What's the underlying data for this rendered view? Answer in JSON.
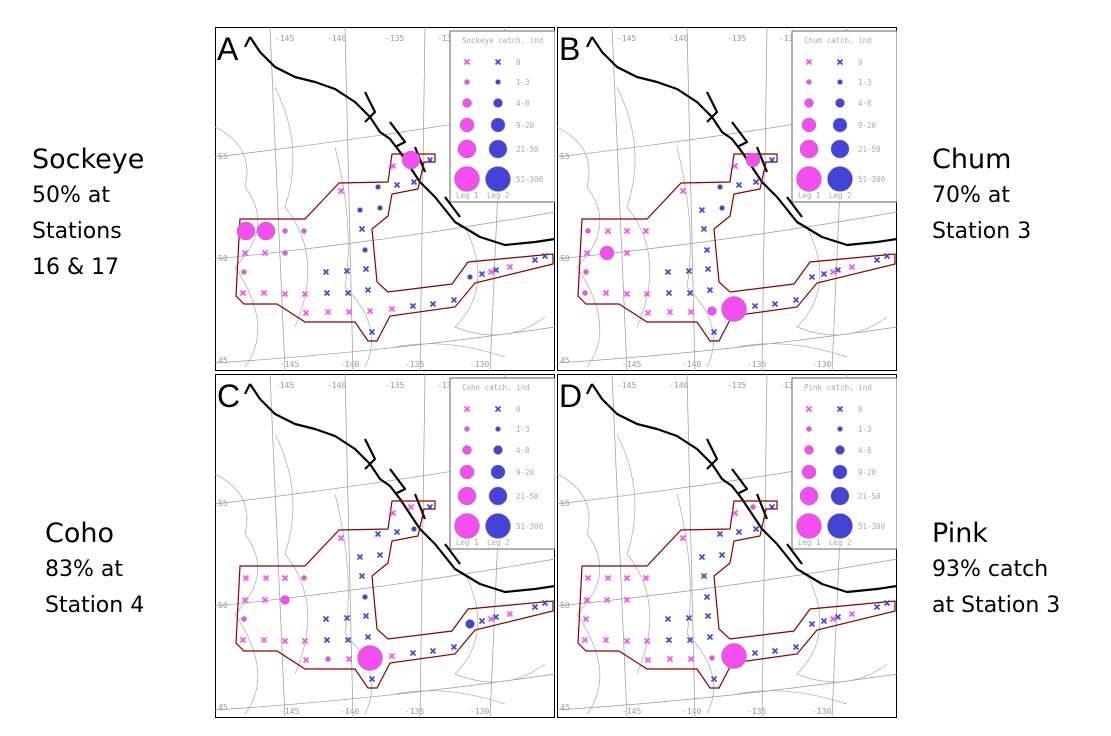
{
  "colors": {
    "leg1": "#f54ef0",
    "leg2": "#4343d8",
    "outline": "#8b0000",
    "coast": "#000000",
    "contour": "#aaaaaa"
  },
  "legend": {
    "categories": [
      "0",
      "1-3",
      "4-8",
      "9-20",
      "21-50",
      "51-300"
    ],
    "leg1": "Leg 1",
    "leg2": "Leg 2"
  },
  "lon_labels": [
    "-145",
    "-140",
    "-135",
    "-130"
  ],
  "lat_labels": [
    "55",
    "50",
    "45"
  ],
  "panels": [
    {
      "letter": "A",
      "legend_title": "Sockeye catch, ind",
      "side": {
        "title": "Sockeye",
        "lines": [
          "50% at",
          "Stations",
          "16 & 17"
        ]
      },
      "markers": [
        "m0",
        "m4",
        "b0",
        "m0",
        "b1",
        "b0",
        "b0",
        "b1",
        "b1",
        "b0",
        "b1",
        "m4",
        "m4",
        "m1",
        "m1",
        "m0",
        "m0",
        "m1",
        "m1",
        "b0",
        "b0",
        "b0",
        "m0",
        "m0",
        "m0",
        "m0",
        "b0",
        "b0",
        "b0",
        "m0",
        "m0",
        "m0",
        "m0",
        "m0",
        "b0",
        "b0",
        "b0",
        "b0",
        "b1",
        "b0",
        "m0",
        "b0",
        "m0",
        "b0",
        "b0"
      ]
    },
    {
      "letter": "B",
      "legend_title": "Chum catch, ind",
      "side": {
        "title": "Chum",
        "lines": [
          "70% at",
          "Station 3"
        ]
      },
      "markers": [
        "m0",
        "m3",
        "b0",
        "m0",
        "b1",
        "b0",
        "b0",
        "b0",
        "b1",
        "b0",
        "b0",
        "m1",
        "m0",
        "m0",
        "m0",
        "m0",
        "m3",
        "m0",
        "m1",
        "b0",
        "b0",
        "b0",
        "m1",
        "m0",
        "m0",
        "m0",
        "b0",
        "b0",
        "b0",
        "m0",
        "m0",
        "m0",
        "m2",
        "m5",
        "b0",
        "b0",
        "b0",
        "b0",
        "b0",
        "b0",
        "m0",
        "b0",
        "m0",
        "b0",
        "b0"
      ]
    },
    {
      "letter": "C",
      "legend_title": "Coho catch, ind",
      "side": {
        "title": "Coho",
        "lines": [
          "83% at",
          "Station 4"
        ]
      },
      "markers": [
        "m0",
        "m0",
        "b0",
        "m0",
        "b0",
        "b0",
        "b1",
        "b0",
        "b0",
        "b0",
        "b1",
        "m0",
        "m0",
        "m0",
        "m1",
        "m0",
        "m0",
        "m2",
        "m1",
        "b0",
        "b0",
        "b0",
        "m0",
        "m0",
        "m0",
        "m0",
        "b0",
        "b0",
        "b0",
        "m0",
        "m1",
        "m0",
        "m5",
        "m0",
        "b0",
        "b0",
        "b0",
        "b0",
        "b2",
        "b0",
        "m0",
        "b0",
        "m0",
        "b0",
        "b0"
      ]
    },
    {
      "letter": "D",
      "legend_title": "Pink catch, ind",
      "side": {
        "title": "Pink",
        "lines": [
          "93% catch",
          "at Station 3"
        ]
      },
      "markers": [
        "m0",
        "m1",
        "b0",
        "m0",
        "b0",
        "b0",
        "b0",
        "b0",
        "b0",
        "b0",
        "b0",
        "m0",
        "m0",
        "m0",
        "m0",
        "m0",
        "m0",
        "m0",
        "m0",
        "b0",
        "b0",
        "b0",
        "m0",
        "m0",
        "m0",
        "m0",
        "b0",
        "b0",
        "b0",
        "m0",
        "m0",
        "m0",
        "m1",
        "m5",
        "b0",
        "b0",
        "b0",
        "b0",
        "b0",
        "b0",
        "m0",
        "b0",
        "m0",
        "b0",
        "b0"
      ]
    }
  ]
}
